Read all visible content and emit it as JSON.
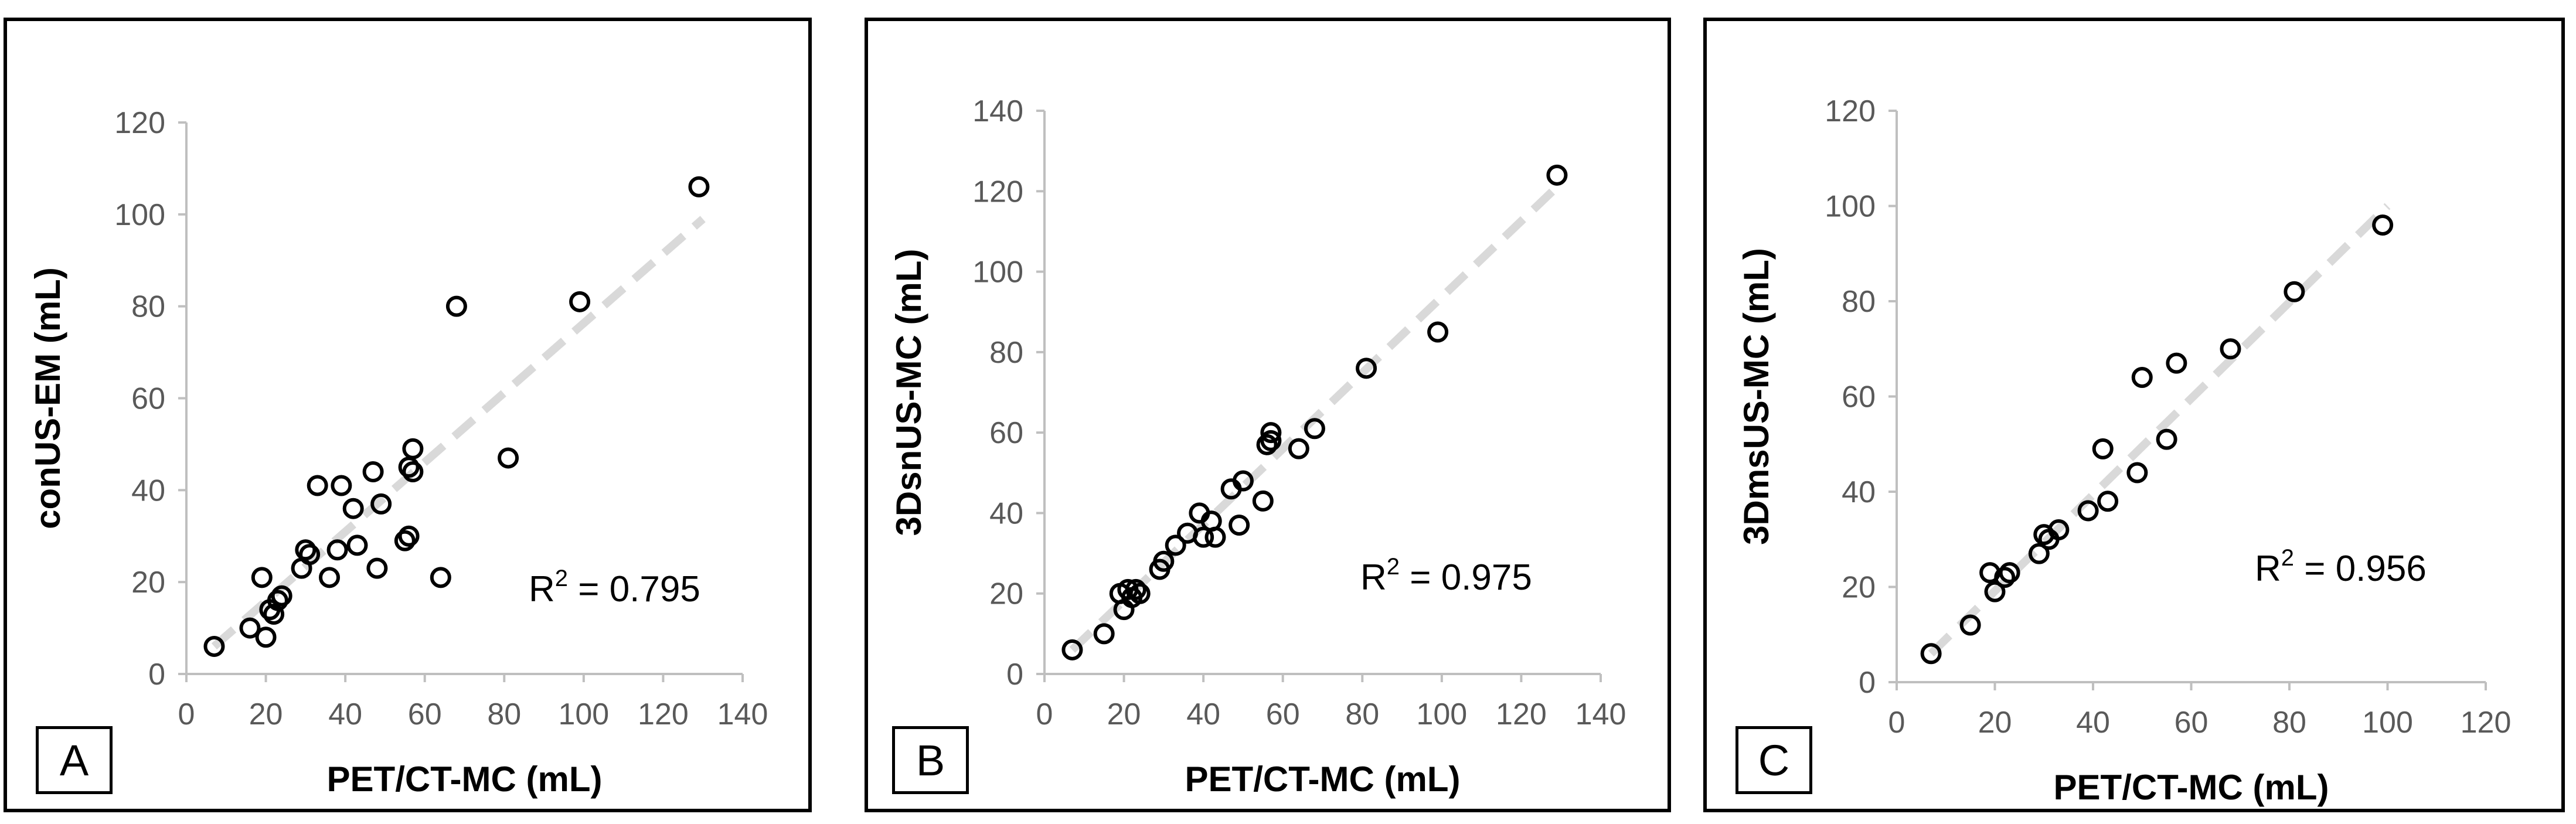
{
  "chart_data": [
    {
      "type": "scatter",
      "panel_label": "A",
      "xlabel": "PET/CT-MC (mL)",
      "ylabel": "conUS-EM (mL)",
      "xlim": [
        0,
        140
      ],
      "ylim": [
        0,
        120
      ],
      "x_ticks": [
        0,
        20,
        40,
        60,
        80,
        100,
        120,
        140
      ],
      "y_ticks": [
        0,
        20,
        40,
        60,
        80,
        100,
        120
      ],
      "grid": false,
      "r2_label": "R",
      "r2_sup": "2",
      "r2_value": " = 0.795",
      "trendline": {
        "x": [
          7,
          130
        ],
        "y": [
          6,
          99
        ]
      },
      "x": [
        7,
        16,
        19,
        20,
        21,
        22,
        23,
        24,
        29,
        30,
        31,
        33,
        36,
        38,
        39,
        42,
        43,
        47,
        48,
        49,
        55,
        56,
        56,
        57,
        57,
        64,
        68,
        81,
        99,
        129
      ],
      "y": [
        6,
        10,
        21,
        8,
        14,
        13,
        16,
        17,
        23,
        27,
        26,
        41,
        21,
        27,
        41,
        36,
        28,
        44,
        23,
        37,
        29,
        30,
        45,
        44,
        49,
        21,
        80,
        47,
        81,
        106
      ]
    },
    {
      "type": "scatter",
      "panel_label": "B",
      "xlabel": "PET/CT-MC (mL)",
      "ylabel": "3DsnUS-MC (mL)",
      "xlim": [
        0,
        140
      ],
      "ylim": [
        0,
        140
      ],
      "x_ticks": [
        0,
        20,
        40,
        60,
        80,
        100,
        120,
        140
      ],
      "y_ticks": [
        0,
        20,
        40,
        60,
        80,
        100,
        120,
        140
      ],
      "grid": false,
      "r2_label": "R",
      "r2_sup": "2",
      "r2_value": " = 0.975",
      "trendline": {
        "x": [
          7,
          130
        ],
        "y": [
          6,
          122
        ]
      },
      "x": [
        7,
        15,
        19,
        20,
        21,
        22,
        23,
        24,
        29,
        30,
        33,
        36,
        39,
        40,
        42,
        43,
        47,
        49,
        50,
        55,
        56,
        57,
        57,
        64,
        68,
        81,
        99,
        129
      ],
      "y": [
        6,
        10,
        20,
        16,
        21,
        19,
        21,
        20,
        26,
        28,
        32,
        35,
        40,
        34,
        38,
        34,
        46,
        37,
        48,
        43,
        57,
        60,
        58,
        56,
        61,
        76,
        85,
        124
      ]
    },
    {
      "type": "scatter",
      "panel_label": "C",
      "xlabel": "PET/CT-MC (mL)",
      "ylabel": "3DmsUS-MC (mL)",
      "xlim": [
        0,
        120
      ],
      "ylim": [
        0,
        120
      ],
      "x_ticks": [
        0,
        20,
        40,
        60,
        80,
        100,
        120
      ],
      "y_ticks": [
        0,
        20,
        40,
        60,
        80,
        100,
        120
      ],
      "grid": false,
      "r2_label": "R",
      "r2_sup": "2",
      "r2_value": " = 0.956",
      "trendline": {
        "x": [
          7,
          100
        ],
        "y": [
          6,
          100
        ]
      },
      "x": [
        7,
        15,
        19,
        20,
        22,
        23,
        29,
        30,
        31,
        33,
        39,
        42,
        43,
        49,
        50,
        55,
        57,
        68,
        81,
        99
      ],
      "y": [
        6,
        12,
        23,
        19,
        22,
        23,
        27,
        31,
        30,
        32,
        36,
        49,
        38,
        44,
        64,
        51,
        67,
        70,
        82,
        96
      ]
    }
  ]
}
